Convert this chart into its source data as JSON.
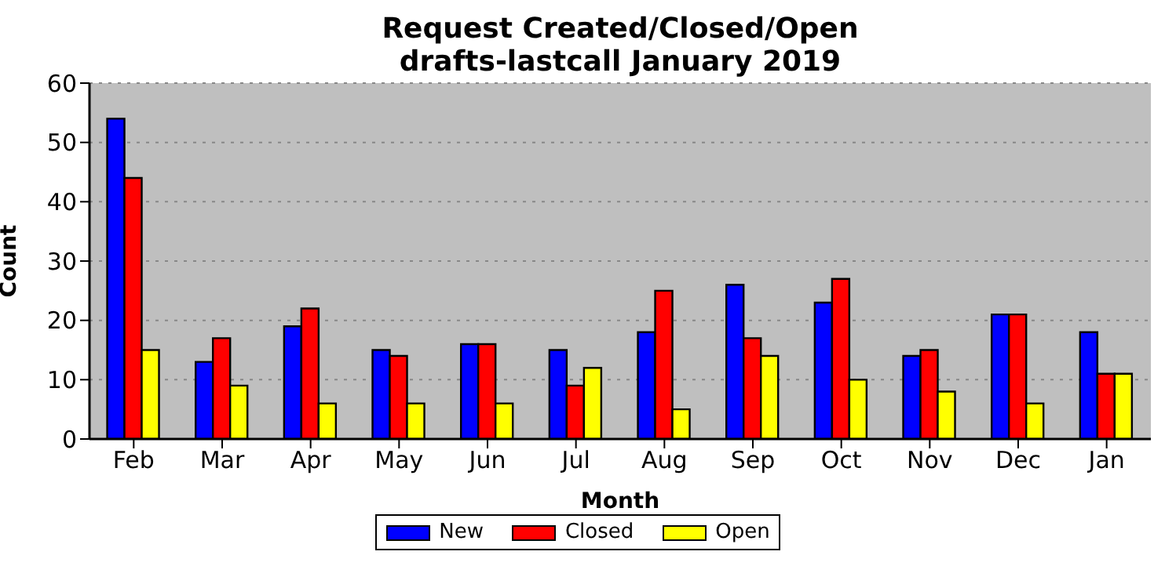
{
  "chart_data": {
    "type": "bar",
    "title": "Request Created/Closed/Open",
    "subtitle": "drafts-lastcall January 2019",
    "xlabel": "Month",
    "ylabel": "Count",
    "categories": [
      "Feb",
      "Mar",
      "Apr",
      "May",
      "Jun",
      "Jul",
      "Aug",
      "Sep",
      "Oct",
      "Nov",
      "Dec",
      "Jan"
    ],
    "series": [
      {
        "name": "New",
        "color": "#0000ff",
        "values": [
          54,
          13,
          19,
          15,
          16,
          15,
          18,
          26,
          23,
          14,
          21,
          18
        ]
      },
      {
        "name": "Closed",
        "color": "#ff0000",
        "values": [
          44,
          17,
          22,
          14,
          16,
          9,
          25,
          17,
          27,
          15,
          21,
          11
        ]
      },
      {
        "name": "Open",
        "color": "#ffff00",
        "values": [
          15,
          9,
          6,
          6,
          6,
          12,
          5,
          14,
          10,
          8,
          6,
          11
        ]
      }
    ],
    "ylim": [
      0,
      60
    ],
    "yticks": [
      0,
      10,
      20,
      30,
      40,
      50,
      60
    ],
    "grid": "y",
    "legend": "bottom"
  }
}
